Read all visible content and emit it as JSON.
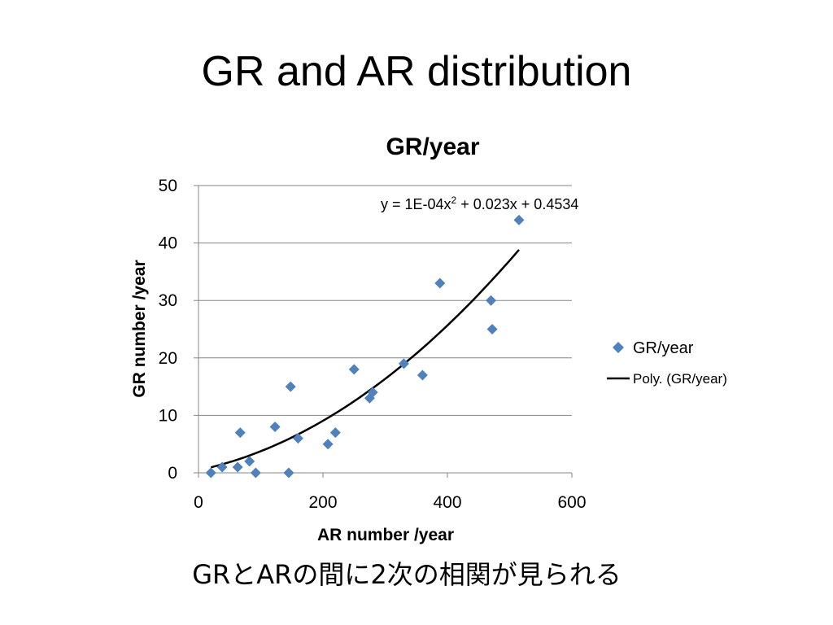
{
  "slide": {
    "title": "GR and AR distribution",
    "caption": "GRとARの間に2次の相関が見られる"
  },
  "chart_data": {
    "type": "scatter",
    "title": "GR/year",
    "xlabel": "AR number /year",
    "ylabel": "GR number /year",
    "xlim": [
      0,
      600
    ],
    "ylim": [
      0,
      50
    ],
    "x_ticks": [
      "0",
      "200",
      "400",
      "600"
    ],
    "y_ticks": [
      "0",
      "10",
      "20",
      "30",
      "40",
      "50"
    ],
    "grid": "horizontal",
    "legend_position": "right",
    "series": [
      {
        "name": "GR/year",
        "marker": "diamond",
        "color": "#4f81bd",
        "points": [
          [
            20,
            0
          ],
          [
            38,
            1
          ],
          [
            63,
            1
          ],
          [
            67,
            7
          ],
          [
            82,
            2
          ],
          [
            92,
            0
          ],
          [
            123,
            8
          ],
          [
            145,
            0
          ],
          [
            148,
            15
          ],
          [
            160,
            6
          ],
          [
            208,
            5
          ],
          [
            220,
            7
          ],
          [
            250,
            18
          ],
          [
            275,
            13
          ],
          [
            280,
            14
          ],
          [
            330,
            19
          ],
          [
            360,
            17
          ],
          [
            388,
            33
          ],
          [
            470,
            30
          ],
          [
            472,
            25
          ],
          [
            515,
            44
          ]
        ]
      }
    ],
    "trendline": {
      "name": "Poly. (GR/year)",
      "type": "polynomial",
      "equation_base": "y = 1E-04x",
      "equation_exp": "2",
      "equation_rest": " + 0.023x + 0.4534",
      "coefficients": [
        0.0001,
        0.023,
        0.4534
      ],
      "x_range": [
        20,
        515
      ],
      "color": "#000000"
    }
  }
}
